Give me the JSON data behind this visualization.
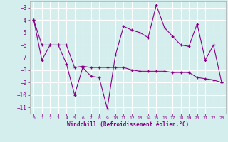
{
  "xlabel": "Windchill (Refroidissement éolien,°C)",
  "bg_color": "#d4eeee",
  "grid_color": "#ffffff",
  "line_color": "#880088",
  "line1_x": [
    0,
    1,
    2,
    3,
    4,
    5,
    6,
    7,
    8,
    9,
    10,
    11,
    12,
    13,
    14,
    15,
    16,
    17,
    18,
    19,
    20,
    21,
    22,
    23
  ],
  "line1_y": [
    -4.0,
    -7.2,
    -6.0,
    -6.0,
    -7.5,
    -10.0,
    -7.8,
    -8.5,
    -8.6,
    -11.1,
    -6.8,
    -4.5,
    -4.8,
    -5.0,
    -5.4,
    -2.8,
    -4.6,
    -5.3,
    -6.0,
    -6.1,
    -4.3,
    -7.2,
    -6.0,
    -9.0
  ],
  "line2_x": [
    0,
    1,
    2,
    3,
    4,
    5,
    6,
    7,
    8,
    9,
    10,
    11,
    12,
    13,
    14,
    15,
    16,
    17,
    18,
    19,
    20,
    21,
    22,
    23
  ],
  "line2_y": [
    -4.0,
    -6.0,
    -6.0,
    -6.0,
    -6.0,
    -7.8,
    -7.7,
    -7.8,
    -7.8,
    -7.8,
    -7.8,
    -7.8,
    -8.0,
    -8.1,
    -8.1,
    -8.1,
    -8.1,
    -8.2,
    -8.2,
    -8.2,
    -8.6,
    -8.7,
    -8.8,
    -9.0
  ],
  "ylim": [
    -11.5,
    -2.5
  ],
  "xlim": [
    -0.5,
    23.5
  ],
  "yticks": [
    -11,
    -10,
    -9,
    -8,
    -7,
    -6,
    -5,
    -4,
    -3
  ],
  "xticks": [
    0,
    1,
    2,
    3,
    4,
    5,
    6,
    7,
    8,
    9,
    10,
    11,
    12,
    13,
    14,
    15,
    16,
    17,
    18,
    19,
    20,
    21,
    22,
    23
  ],
  "marker": "+"
}
